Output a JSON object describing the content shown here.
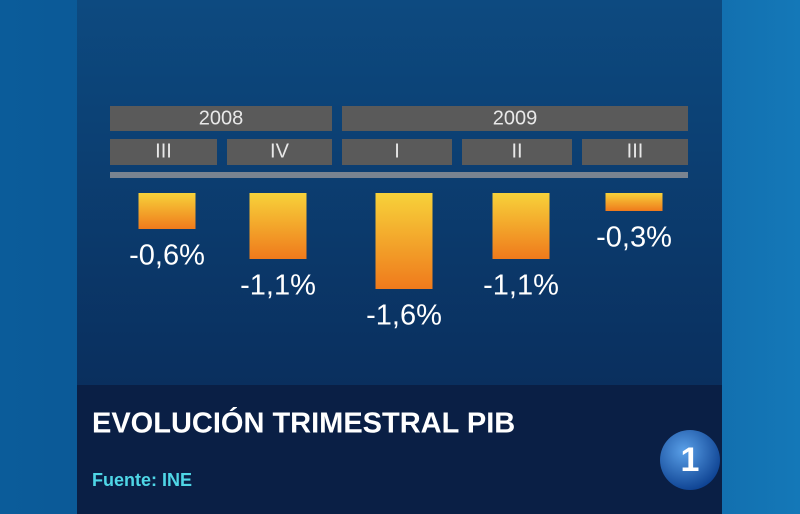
{
  "chart_data": {
    "type": "bar",
    "title": "EVOLUCIÓN TRIMESTRAL PIB",
    "source": "Fuente: INE",
    "logo": "1",
    "groups": [
      "2008",
      "2009"
    ],
    "categories": [
      "III",
      "IV",
      "I",
      "II",
      "III"
    ],
    "values": [
      -0.6,
      -1.1,
      -1.6,
      -1.1,
      -0.3
    ],
    "value_labels": [
      "-0,6%",
      "-1,1%",
      "-1,6%",
      "-1,1%",
      "-0,3%"
    ]
  }
}
